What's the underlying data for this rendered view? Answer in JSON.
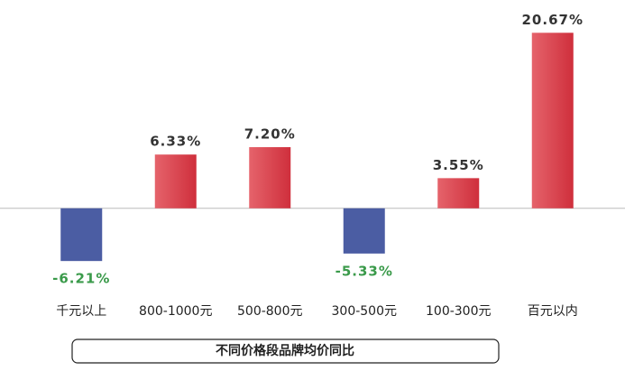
{
  "chart_data": {
    "type": "bar",
    "title": "不同价格段品牌均价同比",
    "categories": [
      "千元以上",
      "800-1000元",
      "500-800元",
      "300-500元",
      "100-300元",
      "百元以内"
    ],
    "values": [
      -6.21,
      6.33,
      7.2,
      -5.33,
      3.55,
      20.67
    ],
    "value_labels": [
      "-6.21%",
      "6.33%",
      "7.20%",
      "-5.33%",
      "3.55%",
      "20.67%"
    ],
    "positive_color": "#d9424d",
    "negative_color": "#4b5da3",
    "positive_label_color": "#333333",
    "negative_label_color": "#3a9a4a",
    "ylim": [
      -8,
      24
    ]
  }
}
